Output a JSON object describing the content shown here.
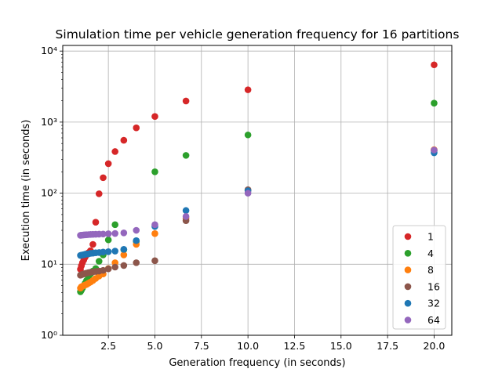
{
  "chart_data": {
    "type": "scatter",
    "title": "Simulation time per vehicle generation frequency for 16 partitions",
    "xlabel": "Generation frequency (in seconds)",
    "ylabel": "Execution time (in seconds)",
    "xlim": [
      0.05,
      20.95
    ],
    "ylim": [
      1,
      12000
    ],
    "yscale": "log",
    "grid": true,
    "legend_position": "lower-right",
    "x_ticks": [
      2.5,
      5.0,
      7.5,
      10.0,
      12.5,
      15.0,
      17.5,
      20.0
    ],
    "x_tick_labels": [
      "2.5",
      "5.0",
      "7.5",
      "10.0",
      "12.5",
      "15.0",
      "17.5",
      "20.0"
    ],
    "y_ticks": [
      1,
      10,
      100,
      1000,
      10000
    ],
    "y_tick_labels": [
      "10⁰",
      "10¹",
      "10²",
      "10³",
      "10⁴"
    ],
    "x": [
      1.0,
      1.05,
      1.11,
      1.18,
      1.25,
      1.33,
      1.43,
      1.54,
      1.67,
      1.82,
      2.0,
      2.22,
      2.5,
      2.86,
      3.33,
      4.0,
      5.0,
      6.67,
      10.0,
      20.0
    ],
    "series": [
      {
        "name": "1",
        "color": "#d62728",
        "values": [
          8.5,
          9.5,
          10.5,
          11.5,
          12.5,
          13.5,
          14.5,
          15.5,
          19,
          39,
          98,
          165,
          260,
          385,
          555,
          830,
          1200,
          1980,
          2850,
          6400
        ]
      },
      {
        "name": "4",
        "color": "#2ca02c",
        "values": [
          4.1,
          4.3,
          4.6,
          5.0,
          5.4,
          5.9,
          6.6,
          7.3,
          8.0,
          8.7,
          11,
          13.5,
          22,
          36,
          16,
          21,
          200,
          340,
          660,
          1850
        ]
      },
      {
        "name": "8",
        "color": "#ff7f0e",
        "values": [
          4.6,
          4.8,
          4.9,
          5.0,
          5.1,
          5.2,
          5.4,
          5.6,
          5.9,
          6.3,
          6.8,
          7.3,
          8.7,
          10.5,
          13.5,
          19,
          27,
          44,
          110,
          410
        ]
      },
      {
        "name": "16",
        "color": "#8c564b",
        "values": [
          7.0,
          7.1,
          7.2,
          7.3,
          7.4,
          7.5,
          7.6,
          7.7,
          7.8,
          7.9,
          8.0,
          8.2,
          8.6,
          9.1,
          9.6,
          10.5,
          11.2,
          41,
          112,
          395
        ]
      },
      {
        "name": "32",
        "color": "#1f77b4",
        "values": [
          13.3,
          13.4,
          13.5,
          13.6,
          13.8,
          13.9,
          14.0,
          14.2,
          14.3,
          14.5,
          14.6,
          14.8,
          15.0,
          15.3,
          16.2,
          21.5,
          34,
          57,
          108,
          370
        ]
      },
      {
        "name": "64",
        "color": "#9467bd",
        "values": [
          25.5,
          25.6,
          25.7,
          25.8,
          25.9,
          26.0,
          26.1,
          26.2,
          26.3,
          26.4,
          26.5,
          26.6,
          26.8,
          27.1,
          27.6,
          30,
          36,
          47,
          100,
          405
        ]
      }
    ]
  }
}
